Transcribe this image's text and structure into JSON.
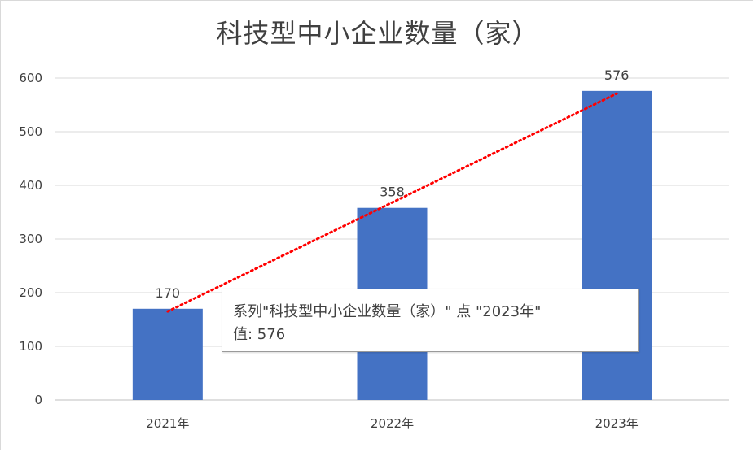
{
  "chart_data": {
    "type": "bar",
    "title": "科技型中小企业数量（家）",
    "categories": [
      "2021年",
      "2022年",
      "2023年"
    ],
    "values": [
      170,
      358,
      576
    ],
    "data_labels": [
      "170",
      "358",
      "576"
    ],
    "ylim": [
      0,
      600
    ],
    "yticks": [
      0,
      100,
      200,
      300,
      400,
      500,
      600
    ],
    "ytick_labels": [
      "0",
      "100",
      "200",
      "300",
      "400",
      "500",
      "600"
    ],
    "xlabel": "",
    "ylabel": "",
    "grid": true,
    "legend": "none",
    "trendline": {
      "type": "linear",
      "style": "dotted",
      "color": "#ff0000"
    },
    "bar_color": "#4472c4"
  },
  "tooltip": {
    "line1": "系列\"科技型中小企业数量（家）\" 点 \"2023年\"",
    "line2": "值: 576"
  }
}
